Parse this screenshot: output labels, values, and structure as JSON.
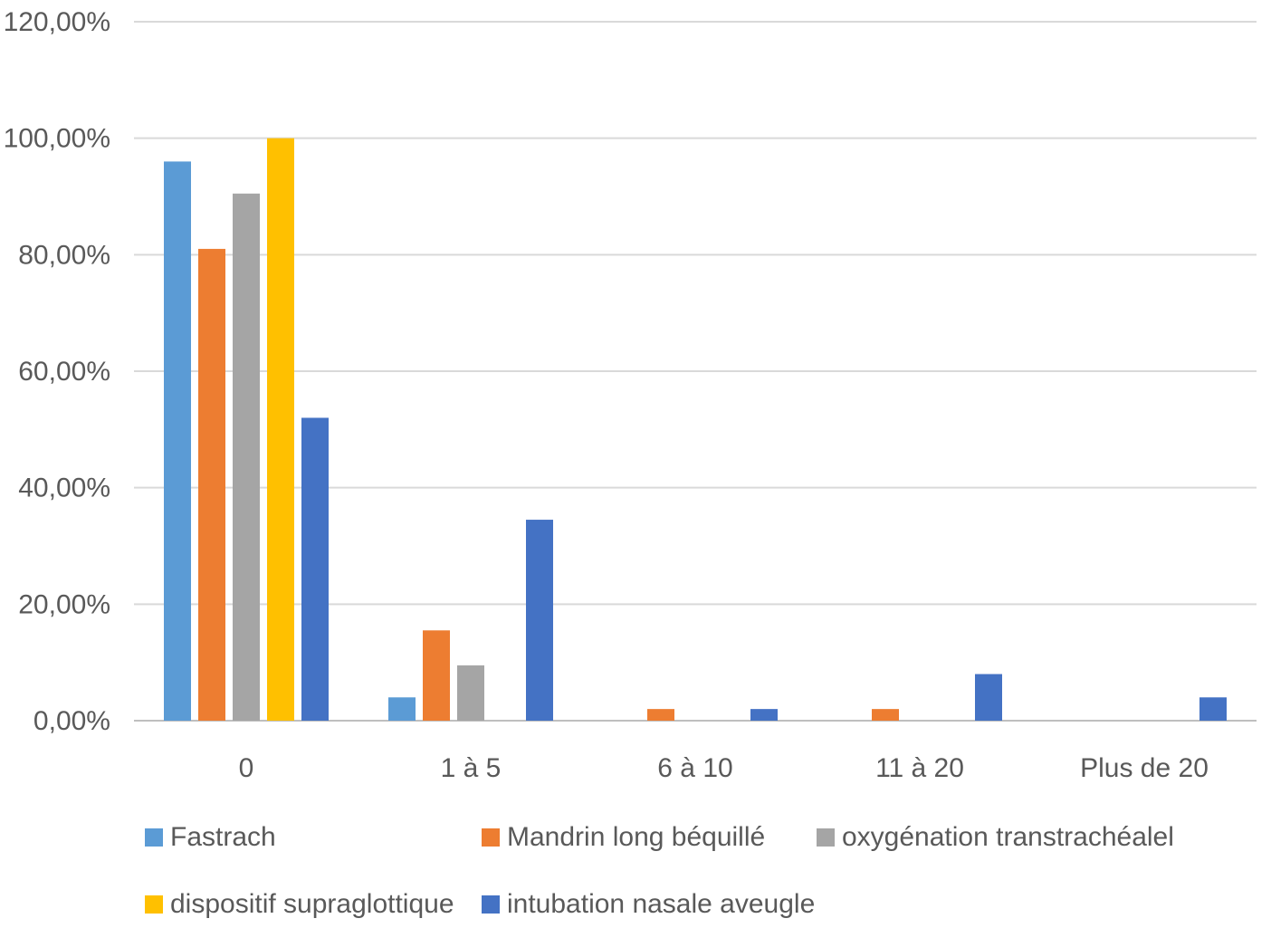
{
  "chart_data": {
    "type": "bar",
    "title": "",
    "xlabel": "",
    "ylabel": "",
    "categories": [
      "0",
      "1 à 5",
      "6 à 10",
      "11 à 20",
      "Plus de 20"
    ],
    "ylim": [
      0,
      120
    ],
    "y_ticks": [
      "0,00%",
      "20,00%",
      "40,00%",
      "60,00%",
      "80,00%",
      "100,00%",
      "120,00%"
    ],
    "grid": true,
    "legend_position": "bottom",
    "series": [
      {
        "name": "Fastrach",
        "color": "#5B9BD5",
        "values": [
          96,
          4,
          0,
          0,
          0
        ]
      },
      {
        "name": "Mandrin long béquillé",
        "color": "#ED7D31",
        "values": [
          81,
          15.5,
          2,
          2,
          0
        ]
      },
      {
        "name": "oxygénation transtrachéalel",
        "color": "#A5A5A5",
        "values": [
          90.5,
          9.5,
          0,
          0,
          0
        ]
      },
      {
        "name": "dispositif supraglottique",
        "color": "#FFC000",
        "values": [
          100,
          0,
          0,
          0,
          0
        ]
      },
      {
        "name": "intubation nasale aveugle",
        "color": "#4472C4",
        "values": [
          52,
          34.5,
          2,
          8,
          4
        ]
      }
    ]
  }
}
